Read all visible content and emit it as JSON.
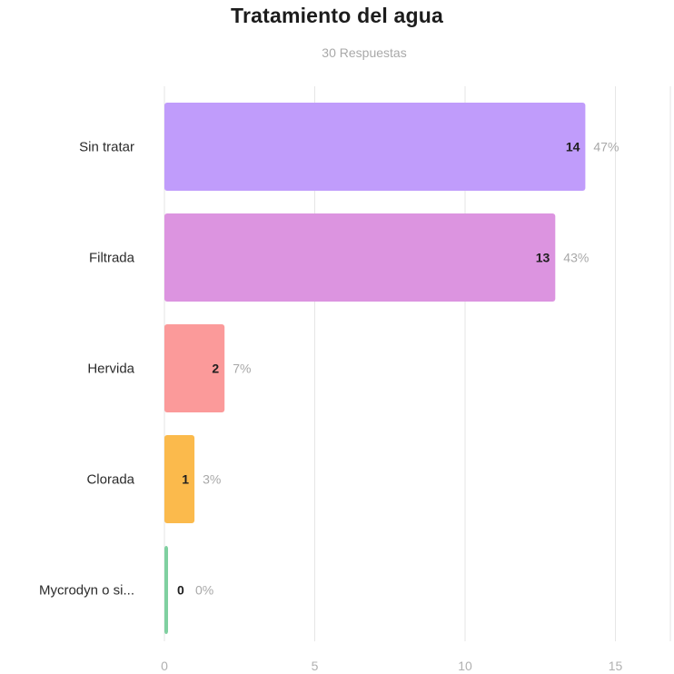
{
  "chart_data": {
    "type": "bar",
    "orientation": "horizontal",
    "title": "Tratamiento del agua",
    "subtitle": "30 Respuestas",
    "categories": [
      "Sin tratar",
      "Filtrada",
      "Hervida",
      "Clorada",
      "Mycrodyn o si..."
    ],
    "values": [
      14,
      13,
      2,
      1,
      0
    ],
    "percent_labels": [
      "47%",
      "43%",
      "7%",
      "3%",
      "0%"
    ],
    "colors": [
      "#c09cfb",
      "#dc94e0",
      "#fb9a9a",
      "#fbba4c",
      "#7fd0a0"
    ],
    "xlim": [
      0,
      17
    ],
    "xticks": [
      0,
      5,
      10,
      15
    ],
    "grid": true,
    "xlabel": "",
    "ylabel": ""
  }
}
